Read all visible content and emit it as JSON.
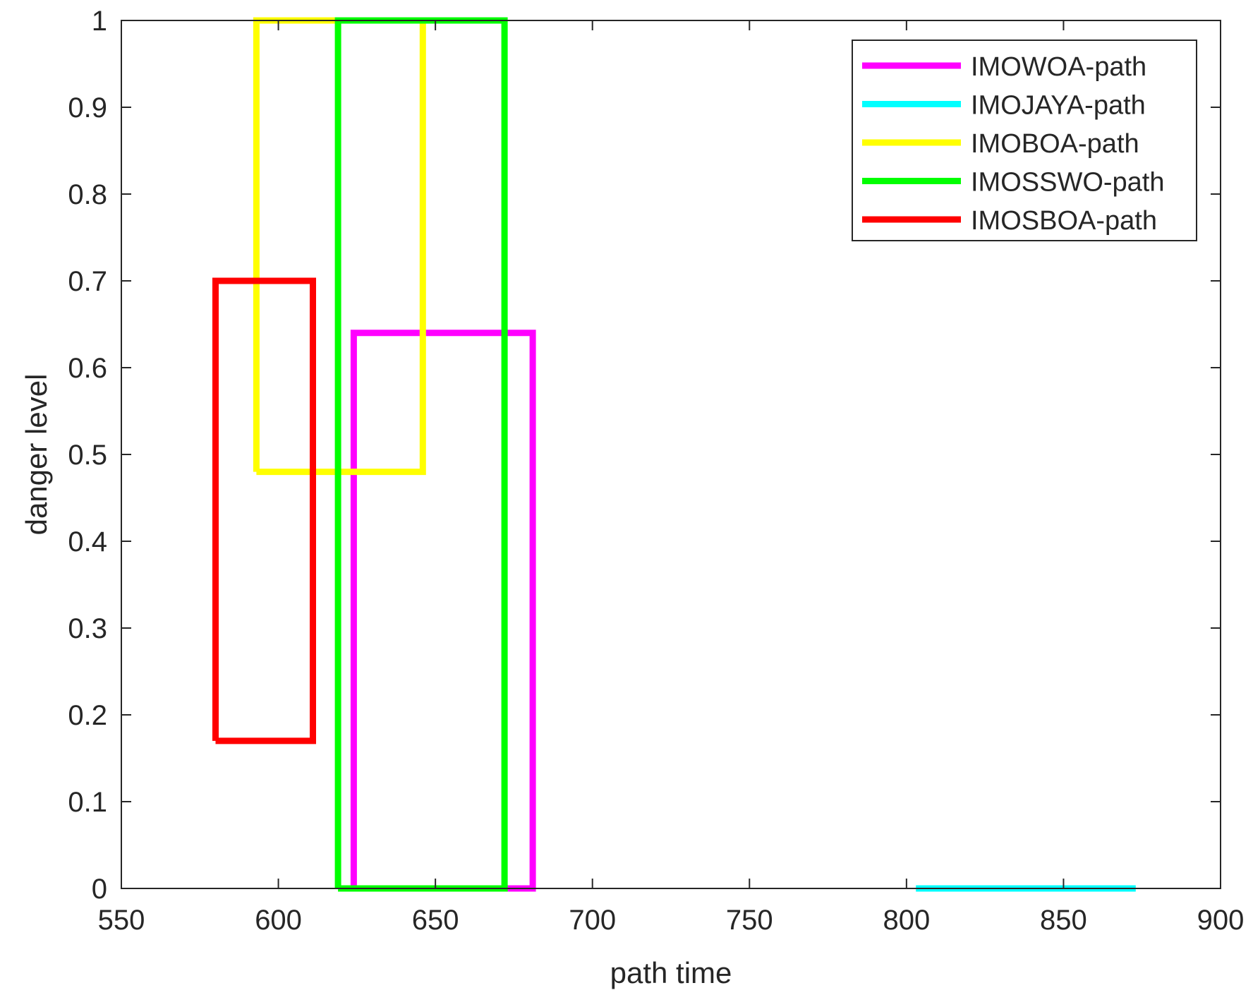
{
  "chart_data": {
    "type": "line",
    "title": "",
    "xlabel": "path time",
    "ylabel": "danger level",
    "xlim": [
      550,
      900
    ],
    "ylim": [
      0,
      1
    ],
    "xticks": [
      550,
      600,
      650,
      700,
      750,
      800,
      850,
      900
    ],
    "yticks": [
      0,
      0.1,
      0.2,
      0.3,
      0.4,
      0.5,
      0.6,
      0.7,
      0.8,
      0.9,
      1
    ],
    "xtick_labels": [
      "550",
      "600",
      "650",
      "700",
      "750",
      "800",
      "850",
      "900"
    ],
    "ytick_labels": [
      "0",
      "0.1",
      "0.2",
      "0.3",
      "0.4",
      "0.5",
      "0.6",
      "0.7",
      "0.8",
      "0.9",
      "1"
    ],
    "grid": false,
    "legend_position": "top-right",
    "series": [
      {
        "name": "IMOWOA-path",
        "color": "#ff00ff",
        "x": [
          624,
          624,
          681,
          681,
          624
        ],
        "y": [
          0,
          0.64,
          0.64,
          0,
          0
        ]
      },
      {
        "name": "IMOJAYA-path",
        "color": "#00ffff",
        "x": [
          803,
          873
        ],
        "y": [
          0,
          0
        ]
      },
      {
        "name": "IMOBOA-path",
        "color": "#ffff00",
        "x": [
          593,
          593,
          646,
          646,
          593
        ],
        "y": [
          0.48,
          1,
          1,
          0.48,
          0.48
        ]
      },
      {
        "name": "IMOSSWO-path",
        "color": "#00ff00",
        "x": [
          619,
          619,
          672,
          672,
          619
        ],
        "y": [
          0,
          1,
          1,
          0,
          0
        ]
      },
      {
        "name": "IMOSBOA-path",
        "color": "#ff0000",
        "x": [
          580,
          580,
          611,
          611,
          580
        ],
        "y": [
          0.17,
          0.7,
          0.7,
          0.17,
          0.17
        ]
      }
    ]
  }
}
